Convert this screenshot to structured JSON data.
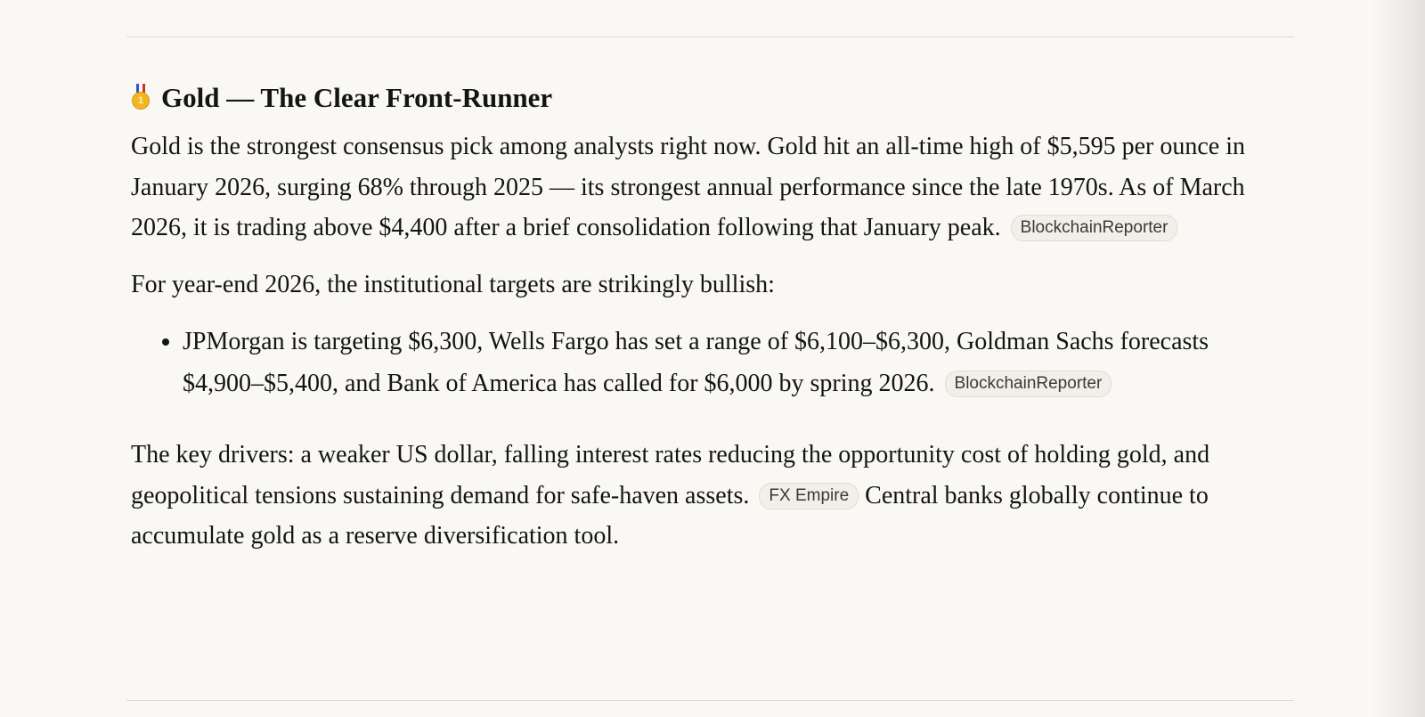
{
  "section": {
    "icon": "gold-medal-icon",
    "title": "Gold — The Clear Front-Runner",
    "paragraph1": "Gold is the strongest consensus pick among analysts right now. Gold hit an all-time high of $5,595 per ounce in January 2026, surging 68% through 2025 — its strongest annual performance since the late 1970s. As of March 2026, it is trading above $4,400 after a brief consolidation following that January peak.",
    "citation1": "BlockchainReporter",
    "paragraph2": "For year-end 2026, the institutional targets are strikingly bullish:",
    "bullets": [
      {
        "text": "JPMorgan is targeting $6,300, Wells Fargo has set a range of $6,100–$6,300, Goldman Sachs forecasts $4,900–$5,400, and Bank of America has called for $6,000 by spring 2026.",
        "citation": "BlockchainReporter"
      }
    ],
    "paragraph3a": "The key drivers: a weaker US dollar, falling interest rates reducing the opportunity cost of holding gold, and geopolitical tensions sustaining demand for safe-haven assets.",
    "citation3": "FX Empire",
    "paragraph3b": "Central banks globally continue to accumulate gold as a reserve diversification tool."
  }
}
